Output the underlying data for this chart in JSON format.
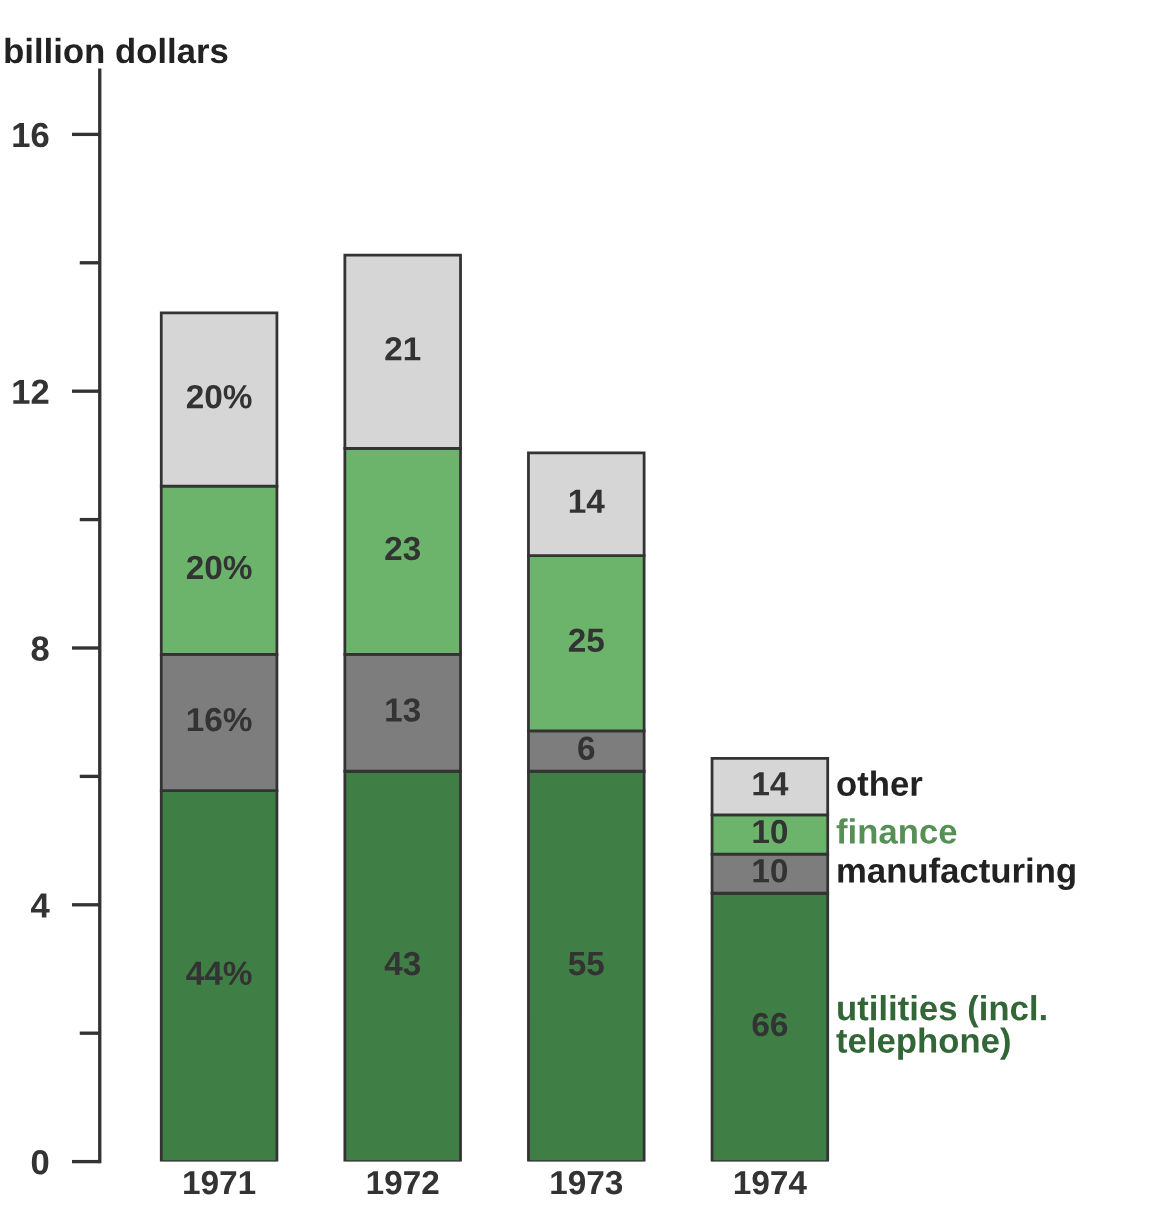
{
  "chart_data": {
    "type": "bar",
    "stacked": true,
    "ylabel": "billion dollars",
    "categories": [
      "1971",
      "1972",
      "1973",
      "1974"
    ],
    "series": [
      {
        "name": "utilities (incl. telephone)",
        "color": "#3f7f45",
        "values": [
          5.78,
          6.08,
          6.08,
          4.18
        ]
      },
      {
        "name": "manufacturing",
        "color": "#7d7d7d",
        "values": [
          2.12,
          1.82,
          0.63,
          0.61
        ]
      },
      {
        "name": "finance",
        "color": "#6cb46c",
        "values": [
          2.62,
          3.21,
          2.73,
          0.61
        ]
      },
      {
        "name": "other",
        "color": "#d6d6d6",
        "values": [
          2.7,
          3.01,
          1.6,
          0.88
        ]
      }
    ],
    "annotations": [
      "44%",
      "43",
      "55",
      "66",
      "16%",
      "13",
      "6",
      "10",
      "20%",
      "23",
      "25",
      "10",
      "20%",
      "21",
      "14",
      "14"
    ],
    "ylim": [
      0,
      17
    ],
    "yticks": [
      0,
      4,
      8,
      12,
      16
    ],
    "grid": false,
    "legend": false
  }
}
